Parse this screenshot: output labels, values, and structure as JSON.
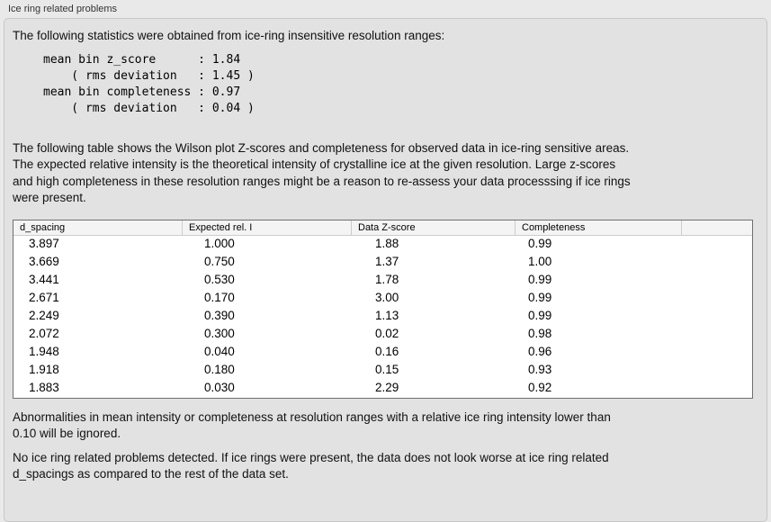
{
  "panel": {
    "title": "Ice ring related problems"
  },
  "intro": {
    "text": "The following statistics were obtained from ice-ring insensitive resolution ranges:"
  },
  "stats_block": {
    "lines": [
      "mean bin z_score      : 1.84",
      "    ( rms deviation   : 1.45 )",
      "mean bin completeness : 0.97",
      "    ( rms deviation   : 0.04 )"
    ]
  },
  "description": {
    "lines": [
      "The following table shows the Wilson plot Z-scores and completeness for observed data in ice-ring sensitive areas.",
      "The expected relative intensity is the theoretical intensity of crystalline ice at the given resolution. Large z-scores",
      "and high completeness in these resolution ranges might be a reason to re-assess your data processsing if ice rings",
      "were present."
    ]
  },
  "table": {
    "columns": [
      "d_spacing",
      "Expected rel. I",
      "Data Z-score",
      "Completeness"
    ],
    "rows": [
      [
        "3.897",
        "1.000",
        "1.88",
        "0.99"
      ],
      [
        "3.669",
        "0.750",
        "1.37",
        "1.00"
      ],
      [
        "3.441",
        "0.530",
        "1.78",
        "0.99"
      ],
      [
        "2.671",
        "0.170",
        "3.00",
        "0.99"
      ],
      [
        "2.249",
        "0.390",
        "1.13",
        "0.99"
      ],
      [
        "2.072",
        "0.300",
        "0.02",
        "0.98"
      ],
      [
        "1.948",
        "0.040",
        "0.16",
        "0.96"
      ],
      [
        "1.918",
        "0.180",
        "0.15",
        "0.93"
      ],
      [
        "1.883",
        "0.030",
        "2.29",
        "0.92"
      ]
    ]
  },
  "notes": {
    "ignore": [
      "Abnormalities in mean intensity or completeness at resolution ranges with a relative ice ring intensity lower than",
      "0.10 will be ignored."
    ],
    "conclusion": [
      "No ice ring related problems detected. If ice rings were present, the data does not look worse at ice ring related",
      "d_spacings as compared to the rest of the data set."
    ]
  },
  "colors": {
    "page_bg": "#e9e9e9",
    "box_bg": "#e2e2e2",
    "box_border": "#c6c6c6",
    "table_border": "#6f6f6f",
    "header_bg": "#f4f4f4",
    "text": "#111111"
  }
}
